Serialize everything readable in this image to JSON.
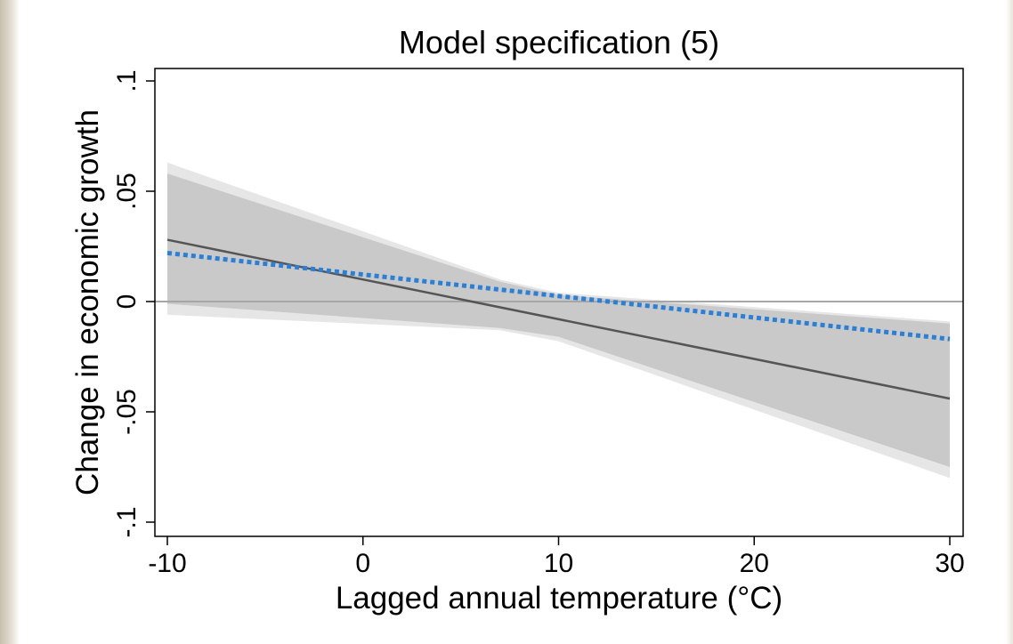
{
  "chart_data": {
    "type": "line",
    "title": "Model specification (5)",
    "xlabel": "Lagged annual temperature (°C)",
    "ylabel": "Change in economic growth",
    "xlim": [
      -10,
      30
    ],
    "ylim": [
      -0.1,
      0.1
    ],
    "x_ticks": [
      -10,
      0,
      10,
      20,
      30
    ],
    "x_tick_labels": [
      "-10",
      "0",
      "10",
      "20",
      "30"
    ],
    "y_ticks": [
      -0.1,
      -0.05,
      0,
      0.05,
      0.1
    ],
    "y_tick_labels": [
      "-.1",
      "-.05",
      "0",
      ".05",
      ".1"
    ],
    "grid": false,
    "reference_line_y": 0,
    "series": [
      {
        "style": "solid",
        "color": "#555555",
        "x": [
          -10,
          30
        ],
        "y": [
          0.028,
          -0.044
        ],
        "ci_inner": {
          "x": [
            -10,
            7,
            10,
            30
          ],
          "lower": [
            -0.001,
            -0.012,
            -0.016,
            -0.075
          ],
          "upper": [
            0.058,
            0.009,
            0.003,
            -0.01
          ]
        },
        "ci_outer": {
          "x": [
            -10,
            7,
            10,
            30
          ],
          "lower": [
            -0.006,
            -0.013,
            -0.018,
            -0.08
          ],
          "upper": [
            0.063,
            0.01,
            0.004,
            -0.009
          ]
        }
      },
      {
        "style": "dotted",
        "color": "#2a7fd6",
        "x": [
          -10,
          30
        ],
        "y": [
          0.022,
          -0.017
        ]
      }
    ],
    "colors": {
      "ci_outer": "#e6e6e6",
      "ci_inner": "#c9c9c9",
      "reference_line": "#a6a6a6",
      "axis": "#000000"
    }
  }
}
